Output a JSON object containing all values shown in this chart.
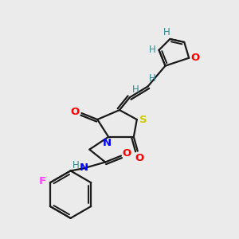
{
  "background_color": "#ebebeb",
  "bond_color": "#1a1a1a",
  "atom_colors": {
    "O": "#ff0000",
    "N": "#0000ff",
    "S": "#cccc00",
    "F": "#ff44ff",
    "H": "#2e8b8b",
    "C": "#1a1a1a"
  },
  "figsize": [
    3.0,
    3.0
  ],
  "dpi": 100
}
